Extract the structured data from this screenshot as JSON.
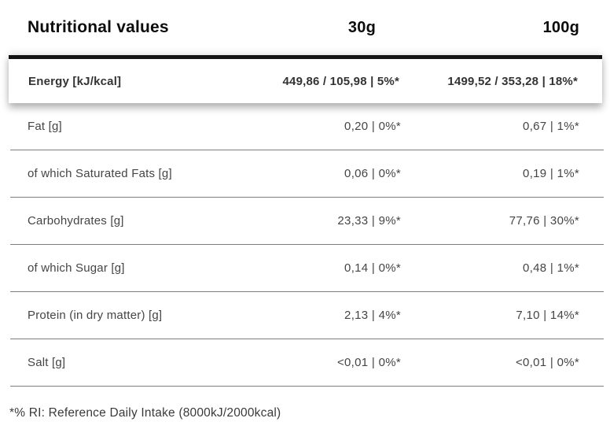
{
  "table": {
    "header": {
      "title": "Nutritional values",
      "col_30g": "30g",
      "col_100g": "100g"
    },
    "energy_row": {
      "label": "Energy [kJ/kcal]",
      "val_30g": "449,86 / 105,98 | 5%*",
      "val_100g": "1499,52 / 353,28 | 18%*"
    },
    "rows": [
      {
        "label": "Fat [g]",
        "val_30g": "0,20 | 0%*",
        "val_100g": "0,67 | 1%*"
      },
      {
        "label": "of which Saturated Fats [g]",
        "val_30g": "0,06 | 0%*",
        "val_100g": "0,19 | 1%*"
      },
      {
        "label": "Carbohydrates [g]",
        "val_30g": "23,33 | 9%*",
        "val_100g": "77,76 | 30%*"
      },
      {
        "label": "of which Sugar [g]",
        "val_30g": "0,14 | 0%*",
        "val_100g": "0,48 | 1%*"
      },
      {
        "label": "Protein (in dry matter) [g]",
        "val_30g": "2,13 | 4%*",
        "val_100g": "7,10 | 14%*"
      },
      {
        "label": "Salt [g]",
        "val_30g": "<0,01 | 0%*",
        "val_100g": "<0,01 | 0%*"
      }
    ],
    "footnote": "*% RI: Reference Daily Intake (8000kJ/2000kcal)"
  },
  "colors": {
    "heading_text": "#0c0c0c",
    "body_text": "#454545",
    "energy_text": "#333333",
    "separator": "#7e7e7e",
    "top_bar": "#141414",
    "background": "#ffffff"
  }
}
